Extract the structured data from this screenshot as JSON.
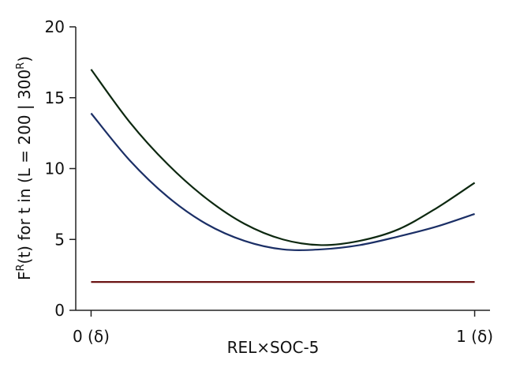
{
  "chart_data": {
    "type": "line",
    "xlabel": "REL×SOC-5",
    "ylabel_parts": [
      "F",
      "R",
      "(t) for t in (L = 200 | 300",
      "R",
      ")"
    ],
    "x_ticks": [
      {
        "value": 0,
        "label": "0 (δ)"
      },
      {
        "value": 1,
        "label": "1 (δ)"
      }
    ],
    "y_ticks": [
      0,
      5,
      10,
      15,
      20
    ],
    "xlim": [
      -0.04,
      1.04
    ],
    "ylim": [
      0,
      20
    ],
    "grid": false,
    "colors": {
      "series_1": "#0d2810",
      "series_2": "#1b2f66",
      "series_3": "#6b1414",
      "axis": "#222222"
    },
    "x": [
      0,
      0.1,
      0.2,
      0.3,
      0.4,
      0.5,
      0.6,
      0.7,
      0.8,
      0.9,
      1.0
    ],
    "series": [
      {
        "values": [
          17.0,
          13.3,
          10.3,
          7.9,
          6.1,
          5.0,
          4.6,
          4.9,
          5.7,
          7.2,
          9.0
        ]
      },
      {
        "values": [
          13.9,
          10.6,
          8.0,
          6.1,
          4.9,
          4.3,
          4.3,
          4.6,
          5.2,
          5.9,
          6.8
        ]
      },
      {
        "values": [
          2.0,
          2.0,
          2.0,
          2.0,
          2.0,
          2.0,
          2.0,
          2.0,
          2.0,
          2.0,
          2.0
        ]
      }
    ]
  }
}
